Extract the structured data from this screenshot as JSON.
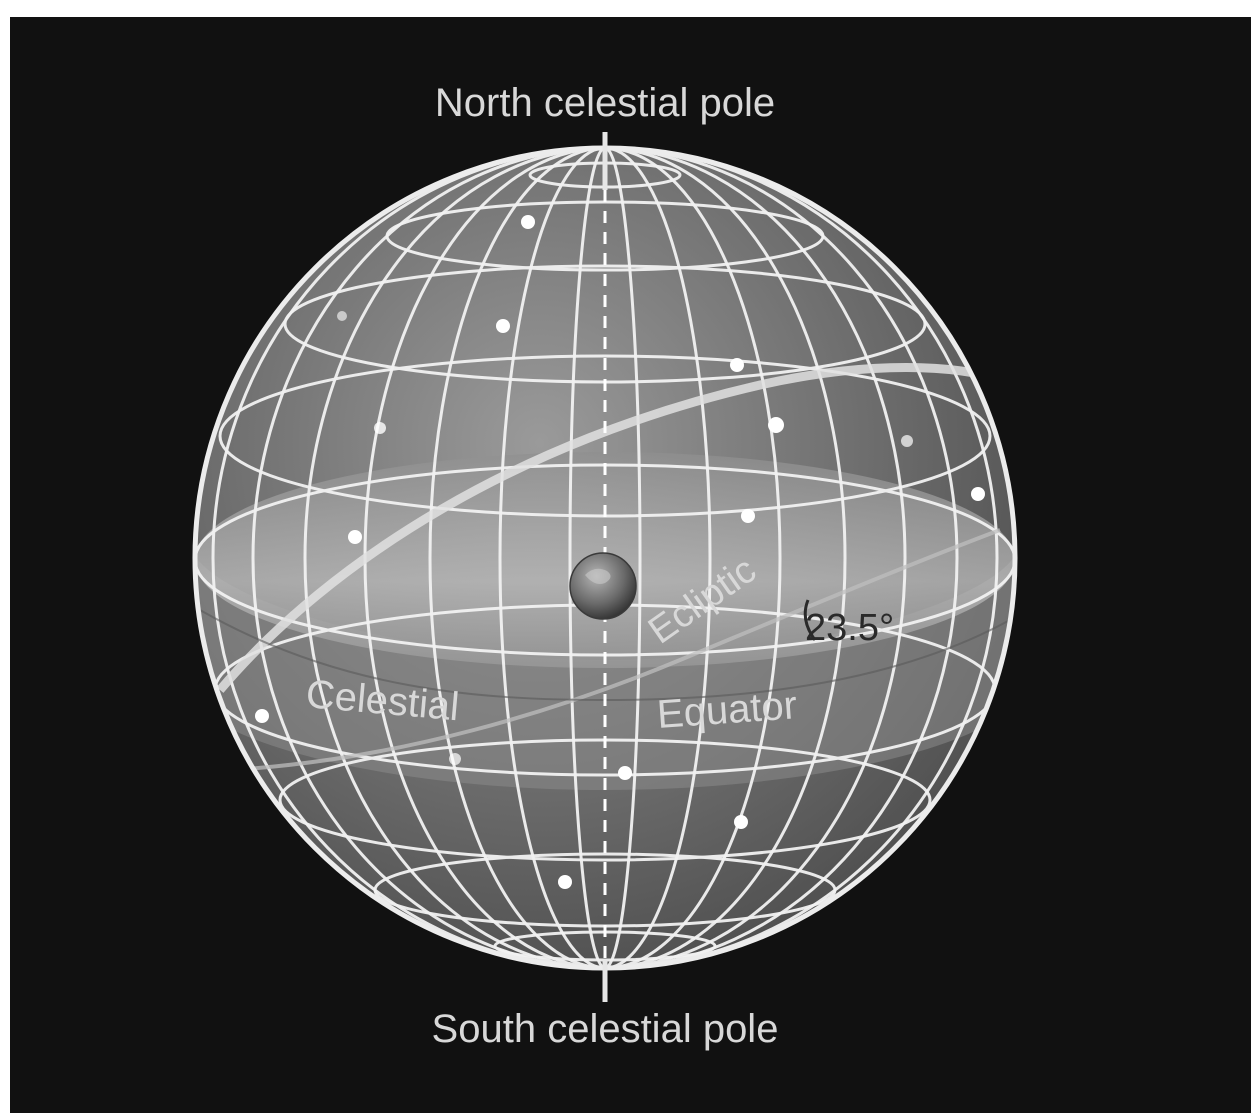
{
  "labels": {
    "north_pole": "North celestial pole",
    "south_pole": "South celestial pole",
    "ecliptic": "Ecliptic",
    "celestial": "Celestial",
    "equator": "Equator",
    "tilt": "23.5°"
  },
  "colors": {
    "background": "#111111",
    "grid": "#f2f2f2",
    "label": "#d8d8d8"
  },
  "icons": {
    "earth": "earth-icon",
    "stars": "star-icon"
  }
}
